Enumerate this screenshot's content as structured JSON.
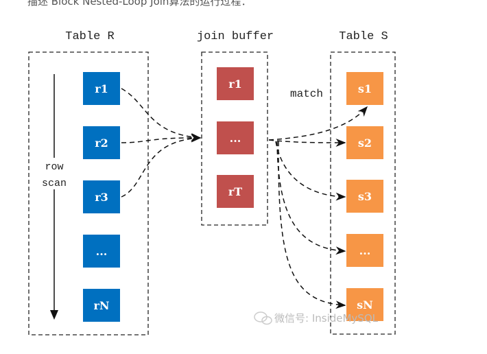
{
  "caption": "描述 Block Nested-Loop Join算法的运行过程：",
  "colors": {
    "table_r": "#0070c0",
    "join_buffer": "#c0504d",
    "table_s": "#f79646"
  },
  "table_r": {
    "title": "Table R",
    "scan_label": [
      "row",
      "scan"
    ],
    "rows": [
      "r1",
      "r2",
      "r3",
      "...",
      "rN"
    ]
  },
  "join_buffer": {
    "title": "join buffer",
    "rows": [
      "r1",
      "...",
      "rT"
    ]
  },
  "table_s": {
    "title": "Table S",
    "rows": [
      "s1",
      "s2",
      "s3",
      "...",
      "sN"
    ]
  },
  "match_label": "match",
  "watermark": "微信号: InsideMySQL"
}
